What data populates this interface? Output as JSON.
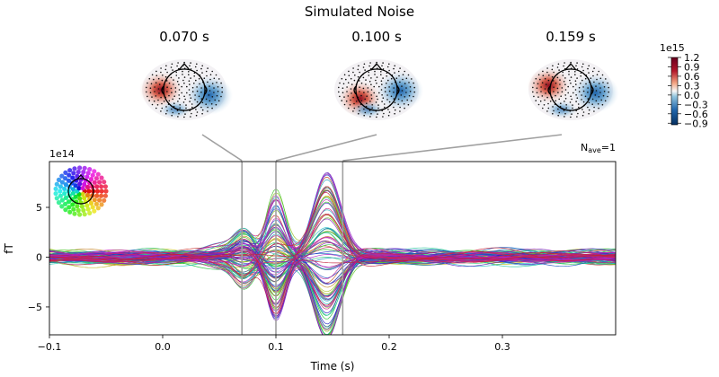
{
  "chart_data": {
    "type": "line",
    "title": "Simulated Noise",
    "xlabel": "Time (s)",
    "ylabel": "fT",
    "y_scale_label": "1e14",
    "xlim": [
      -0.1,
      0.4
    ],
    "ylim": [
      -7.8,
      9.6
    ],
    "x_ticks": [
      {
        "value": -0.1,
        "label": "−0.1"
      },
      {
        "value": 0.0,
        "label": "0.0"
      },
      {
        "value": 0.1,
        "label": "0.1"
      },
      {
        "value": 0.2,
        "label": "0.2"
      },
      {
        "value": 0.3,
        "label": "0.3"
      }
    ],
    "y_ticks": [
      {
        "value": 5,
        "label": "5"
      },
      {
        "value": 0,
        "label": "0"
      },
      {
        "value": -5,
        "label": "−5"
      }
    ],
    "nave_label": "N",
    "nave_sub": "ave",
    "nave_value": "=1",
    "n_channels": 102,
    "topomaps": [
      {
        "time": 0.07,
        "label": "0.070 s",
        "red_angle": 180,
        "blue_angle": 0
      },
      {
        "time": 0.1,
        "label": "0.100 s",
        "red_angle": 225,
        "blue_angle": 20
      },
      {
        "time": 0.159,
        "label": "0.159 s",
        "red_angle": 160,
        "blue_angle": 10
      }
    ],
    "colorbar": {
      "scale_label": "1e15",
      "vmin": -0.95,
      "vmax": 1.2,
      "ticks": [
        {
          "value": 1.2,
          "label": "1.2"
        },
        {
          "value": 0.9,
          "label": "0.9"
        },
        {
          "value": 0.6,
          "label": "0.6"
        },
        {
          "value": 0.3,
          "label": "0.3"
        },
        {
          "value": 0.0,
          "label": "0.0"
        },
        {
          "value": -0.3,
          "label": "−0.3"
        },
        {
          "value": -0.6,
          "label": "−0.6"
        },
        {
          "value": -0.9,
          "label": "−0.9"
        }
      ]
    },
    "peaks": [
      {
        "time": 0.07,
        "amp": -4.8
      },
      {
        "time": 0.1,
        "amp": 7.0
      },
      {
        "time": 0.145,
        "amp": 9.0
      }
    ],
    "colors": {
      "axis": "#000000",
      "guide_lines": "#a0a0a0",
      "red": "#b2182b",
      "blue": "#2166ac"
    }
  }
}
